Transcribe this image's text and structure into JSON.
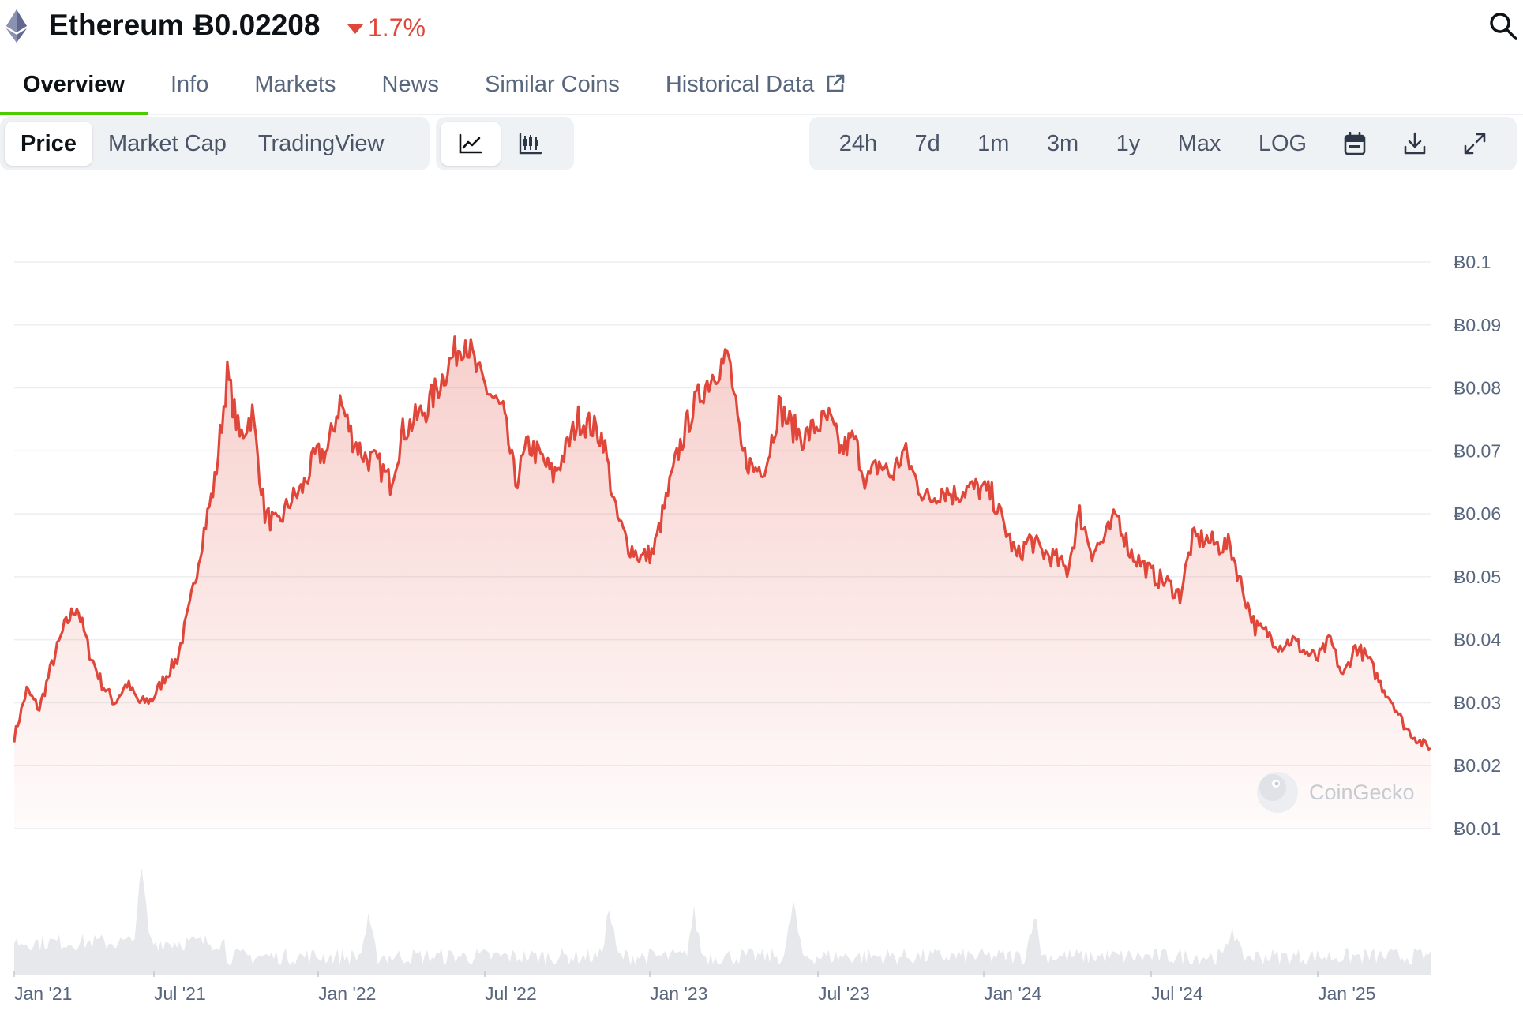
{
  "header": {
    "coin_name": "Ethereum",
    "price": "Ƀ0.02208",
    "change": "1.7%",
    "change_direction": "down",
    "change_color": "#e0473a",
    "logo_icon": "ethereum-icon",
    "search_icon": "search-icon"
  },
  "tabs": [
    {
      "label": "Overview",
      "active": true
    },
    {
      "label": "Info",
      "active": false
    },
    {
      "label": "Markets",
      "active": false
    },
    {
      "label": "News",
      "active": false
    },
    {
      "label": "Similar Coins",
      "active": false
    },
    {
      "label": "Historical Data",
      "active": false,
      "icon": "external-link-icon"
    }
  ],
  "toolbar": {
    "chart_types": [
      {
        "label": "Price",
        "active": true
      },
      {
        "label": "Market Cap",
        "active": false
      },
      {
        "label": "TradingView",
        "active": false
      }
    ],
    "view_modes": [
      {
        "icon": "line-chart-icon",
        "active": true
      },
      {
        "icon": "candlestick-icon",
        "active": false
      }
    ],
    "ranges": [
      {
        "label": "24h",
        "active": false
      },
      {
        "label": "7d",
        "active": false
      },
      {
        "label": "1m",
        "active": false
      },
      {
        "label": "3m",
        "active": false
      },
      {
        "label": "1y",
        "active": false
      },
      {
        "label": "Max",
        "active": false
      },
      {
        "label": "LOG",
        "active": false
      }
    ],
    "tools": [
      "calendar-icon",
      "download-icon",
      "expand-icon"
    ]
  },
  "watermark": "CoinGecko",
  "accent_color": "#e0473a",
  "chart_data": {
    "type": "area",
    "title": "",
    "xlabel": "",
    "ylabel": "",
    "ylim": [
      0.005,
      0.105
    ],
    "yticks": [
      "Ƀ0.1",
      "Ƀ0.09",
      "Ƀ0.08",
      "Ƀ0.07",
      "Ƀ0.06",
      "Ƀ0.05",
      "Ƀ0.04",
      "Ƀ0.03",
      "Ƀ0.02",
      "Ƀ0.01"
    ],
    "ytick_values": [
      0.1,
      0.09,
      0.08,
      0.07,
      0.06,
      0.05,
      0.04,
      0.03,
      0.02,
      0.01
    ],
    "xticks": [
      "Jan '21",
      "Jul '21",
      "Jan '22",
      "Jul '22",
      "Jan '23",
      "Jul '23",
      "Jan '24",
      "Jul '24",
      "Jan '25"
    ],
    "grid": true,
    "legend": "none",
    "series": [
      {
        "values": [
          0.0245,
          0.032,
          0.029,
          0.036,
          0.042,
          0.0455,
          0.038,
          0.033,
          0.03,
          0.033,
          0.03,
          0.0305,
          0.034,
          0.037,
          0.045,
          0.056,
          0.065,
          0.082,
          0.072,
          0.076,
          0.06,
          0.058,
          0.062,
          0.064,
          0.069,
          0.07,
          0.078,
          0.072,
          0.069,
          0.068,
          0.065,
          0.073,
          0.075,
          0.077,
          0.081,
          0.085,
          0.088,
          0.082,
          0.079,
          0.076,
          0.065,
          0.071,
          0.069,
          0.066,
          0.07,
          0.075,
          0.074,
          0.072,
          0.06,
          0.055,
          0.053,
          0.054,
          0.062,
          0.07,
          0.076,
          0.08,
          0.083,
          0.085,
          0.07,
          0.067,
          0.068,
          0.077,
          0.074,
          0.072,
          0.074,
          0.075,
          0.07,
          0.072,
          0.065,
          0.068,
          0.066,
          0.07,
          0.065,
          0.062,
          0.064,
          0.063,
          0.064,
          0.064,
          0.063,
          0.058,
          0.053,
          0.056,
          0.054,
          0.053,
          0.051,
          0.06,
          0.054,
          0.056,
          0.06,
          0.054,
          0.052,
          0.05,
          0.049,
          0.047,
          0.056,
          0.056,
          0.055,
          0.055,
          0.048,
          0.042,
          0.041,
          0.039,
          0.04,
          0.038,
          0.037,
          0.04,
          0.034,
          0.039,
          0.037,
          0.033,
          0.03,
          0.026,
          0.024,
          0.0228
        ]
      }
    ],
    "volume": "present"
  }
}
